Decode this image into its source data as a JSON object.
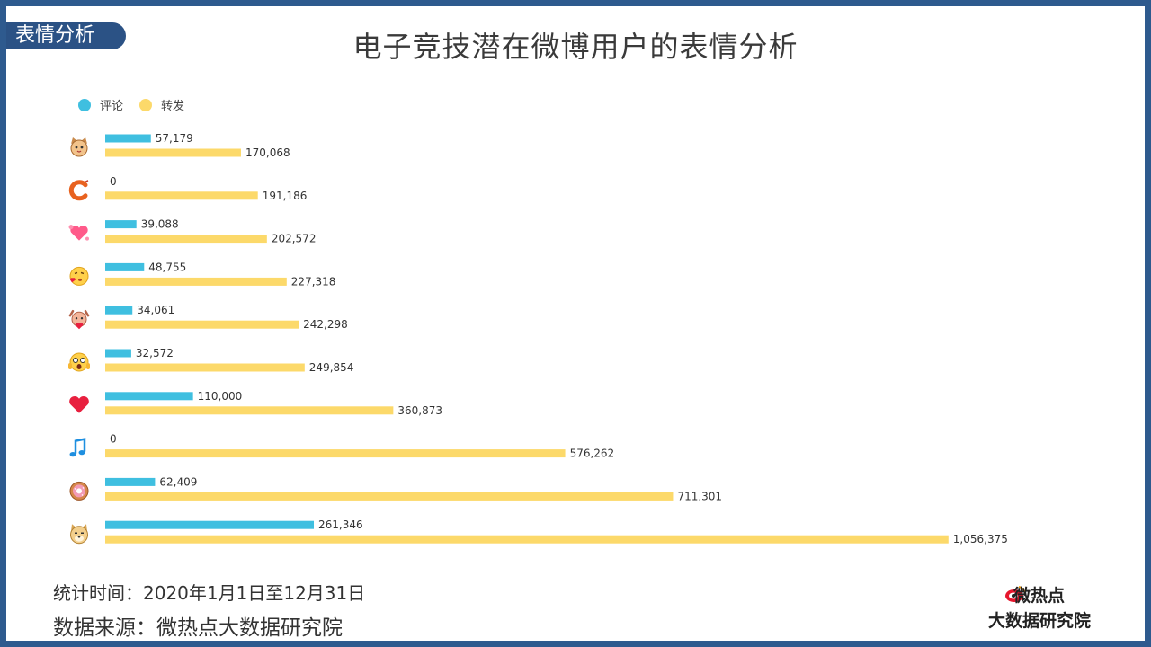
{
  "header": {
    "tag": "表情分析",
    "title": "电子竞技潜在微博用户的表情分析"
  },
  "footer": {
    "time": "统计时间：2020年1月1日至12月31日",
    "source": "数据来源：微热点大数据研究院"
  },
  "logo": {
    "line1": "微热点",
    "line2": "大数据研究院"
  },
  "colors": {
    "comment": "#3fbfe0",
    "repost": "#fcd96a",
    "frame": "#2e5a8e",
    "tag_bg": "#2b5285"
  },
  "chart_data": {
    "type": "bar",
    "orientation": "horizontal",
    "legend_position": "top-left",
    "grid": false,
    "categories": [
      "cat-face-emoji",
      "shrimp-emoji",
      "hearts-emoji",
      "kiss-emoji",
      "heart-hands-emoji",
      "shocked-emoji",
      "red-heart-emoji",
      "music-note-emoji",
      "doughnut-emoji",
      "doge-emoji"
    ],
    "series": [
      {
        "name": "评论",
        "values": [
          57179,
          0,
          39088,
          48755,
          34061,
          32572,
          110000,
          0,
          62409,
          261346
        ]
      },
      {
        "name": "转发",
        "values": [
          170068,
          191186,
          202572,
          227318,
          242298,
          249854,
          360873,
          576262,
          711301,
          1056375
        ]
      }
    ],
    "xlim": [
      0,
      1060000
    ]
  }
}
